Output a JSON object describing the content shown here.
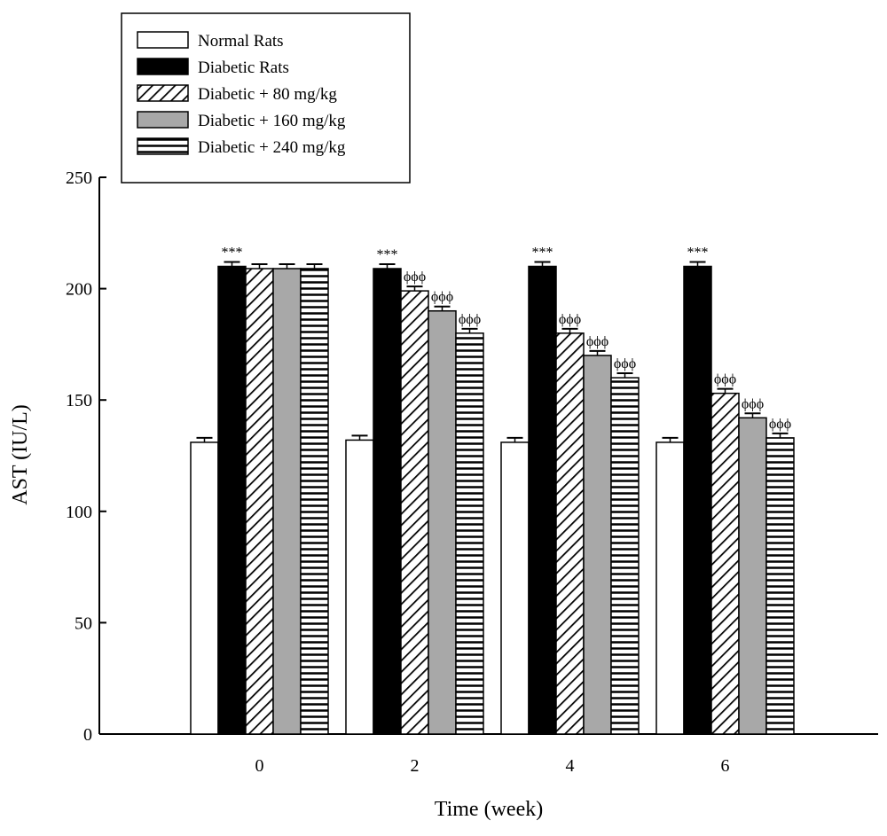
{
  "chart_data": {
    "type": "bar",
    "xlabel": "Time (week)",
    "ylabel": "AST (IU/L)",
    "ylim": [
      0,
      250
    ],
    "yticks": [
      0,
      50,
      100,
      150,
      200,
      250
    ],
    "categories": [
      "0",
      "2",
      "4",
      "6"
    ],
    "grid": false,
    "legend_position": "top-left",
    "series": [
      {
        "name": "Normal Rats",
        "values": [
          131,
          132,
          131,
          131
        ],
        "errors": [
          2,
          2,
          2,
          2
        ],
        "pattern": "white"
      },
      {
        "name": "Diabetic Rats",
        "values": [
          210,
          209,
          210,
          210
        ],
        "errors": [
          2,
          2,
          2,
          2
        ],
        "pattern": "black"
      },
      {
        "name": "Diabetic + 80 mg/kg",
        "values": [
          209,
          199,
          180,
          153
        ],
        "errors": [
          2,
          2,
          2,
          2
        ],
        "pattern": "diagonal"
      },
      {
        "name": "Diabetic + 160 mg/kg",
        "values": [
          209,
          190,
          170,
          142
        ],
        "errors": [
          2,
          2,
          2,
          2
        ],
        "pattern": "gray"
      },
      {
        "name": "Diabetic + 240 mg/kg",
        "values": [
          209,
          180,
          160,
          133
        ],
        "errors": [
          2,
          2,
          2,
          2
        ],
        "pattern": "horizontal"
      }
    ],
    "annotations": [
      {
        "series": 1,
        "category": 0,
        "text": "***"
      },
      {
        "series": 1,
        "category": 1,
        "text": "***"
      },
      {
        "series": 1,
        "category": 2,
        "text": "***"
      },
      {
        "series": 1,
        "category": 3,
        "text": "***"
      },
      {
        "series": 2,
        "category": 1,
        "text": "ϕϕϕ"
      },
      {
        "series": 3,
        "category": 1,
        "text": "ϕϕϕ"
      },
      {
        "series": 4,
        "category": 1,
        "text": "ϕϕϕ"
      },
      {
        "series": 2,
        "category": 2,
        "text": "ϕϕϕ"
      },
      {
        "series": 3,
        "category": 2,
        "text": "ϕϕϕ"
      },
      {
        "series": 4,
        "category": 2,
        "text": "ϕϕϕ"
      },
      {
        "series": 2,
        "category": 3,
        "text": "ϕϕϕ"
      },
      {
        "series": 3,
        "category": 3,
        "text": "ϕϕϕ"
      },
      {
        "series": 4,
        "category": 3,
        "text": "ϕϕϕ"
      }
    ],
    "colors": {
      "black": "#000000",
      "gray": "#a8a8a8",
      "white": "#ffffff"
    }
  }
}
